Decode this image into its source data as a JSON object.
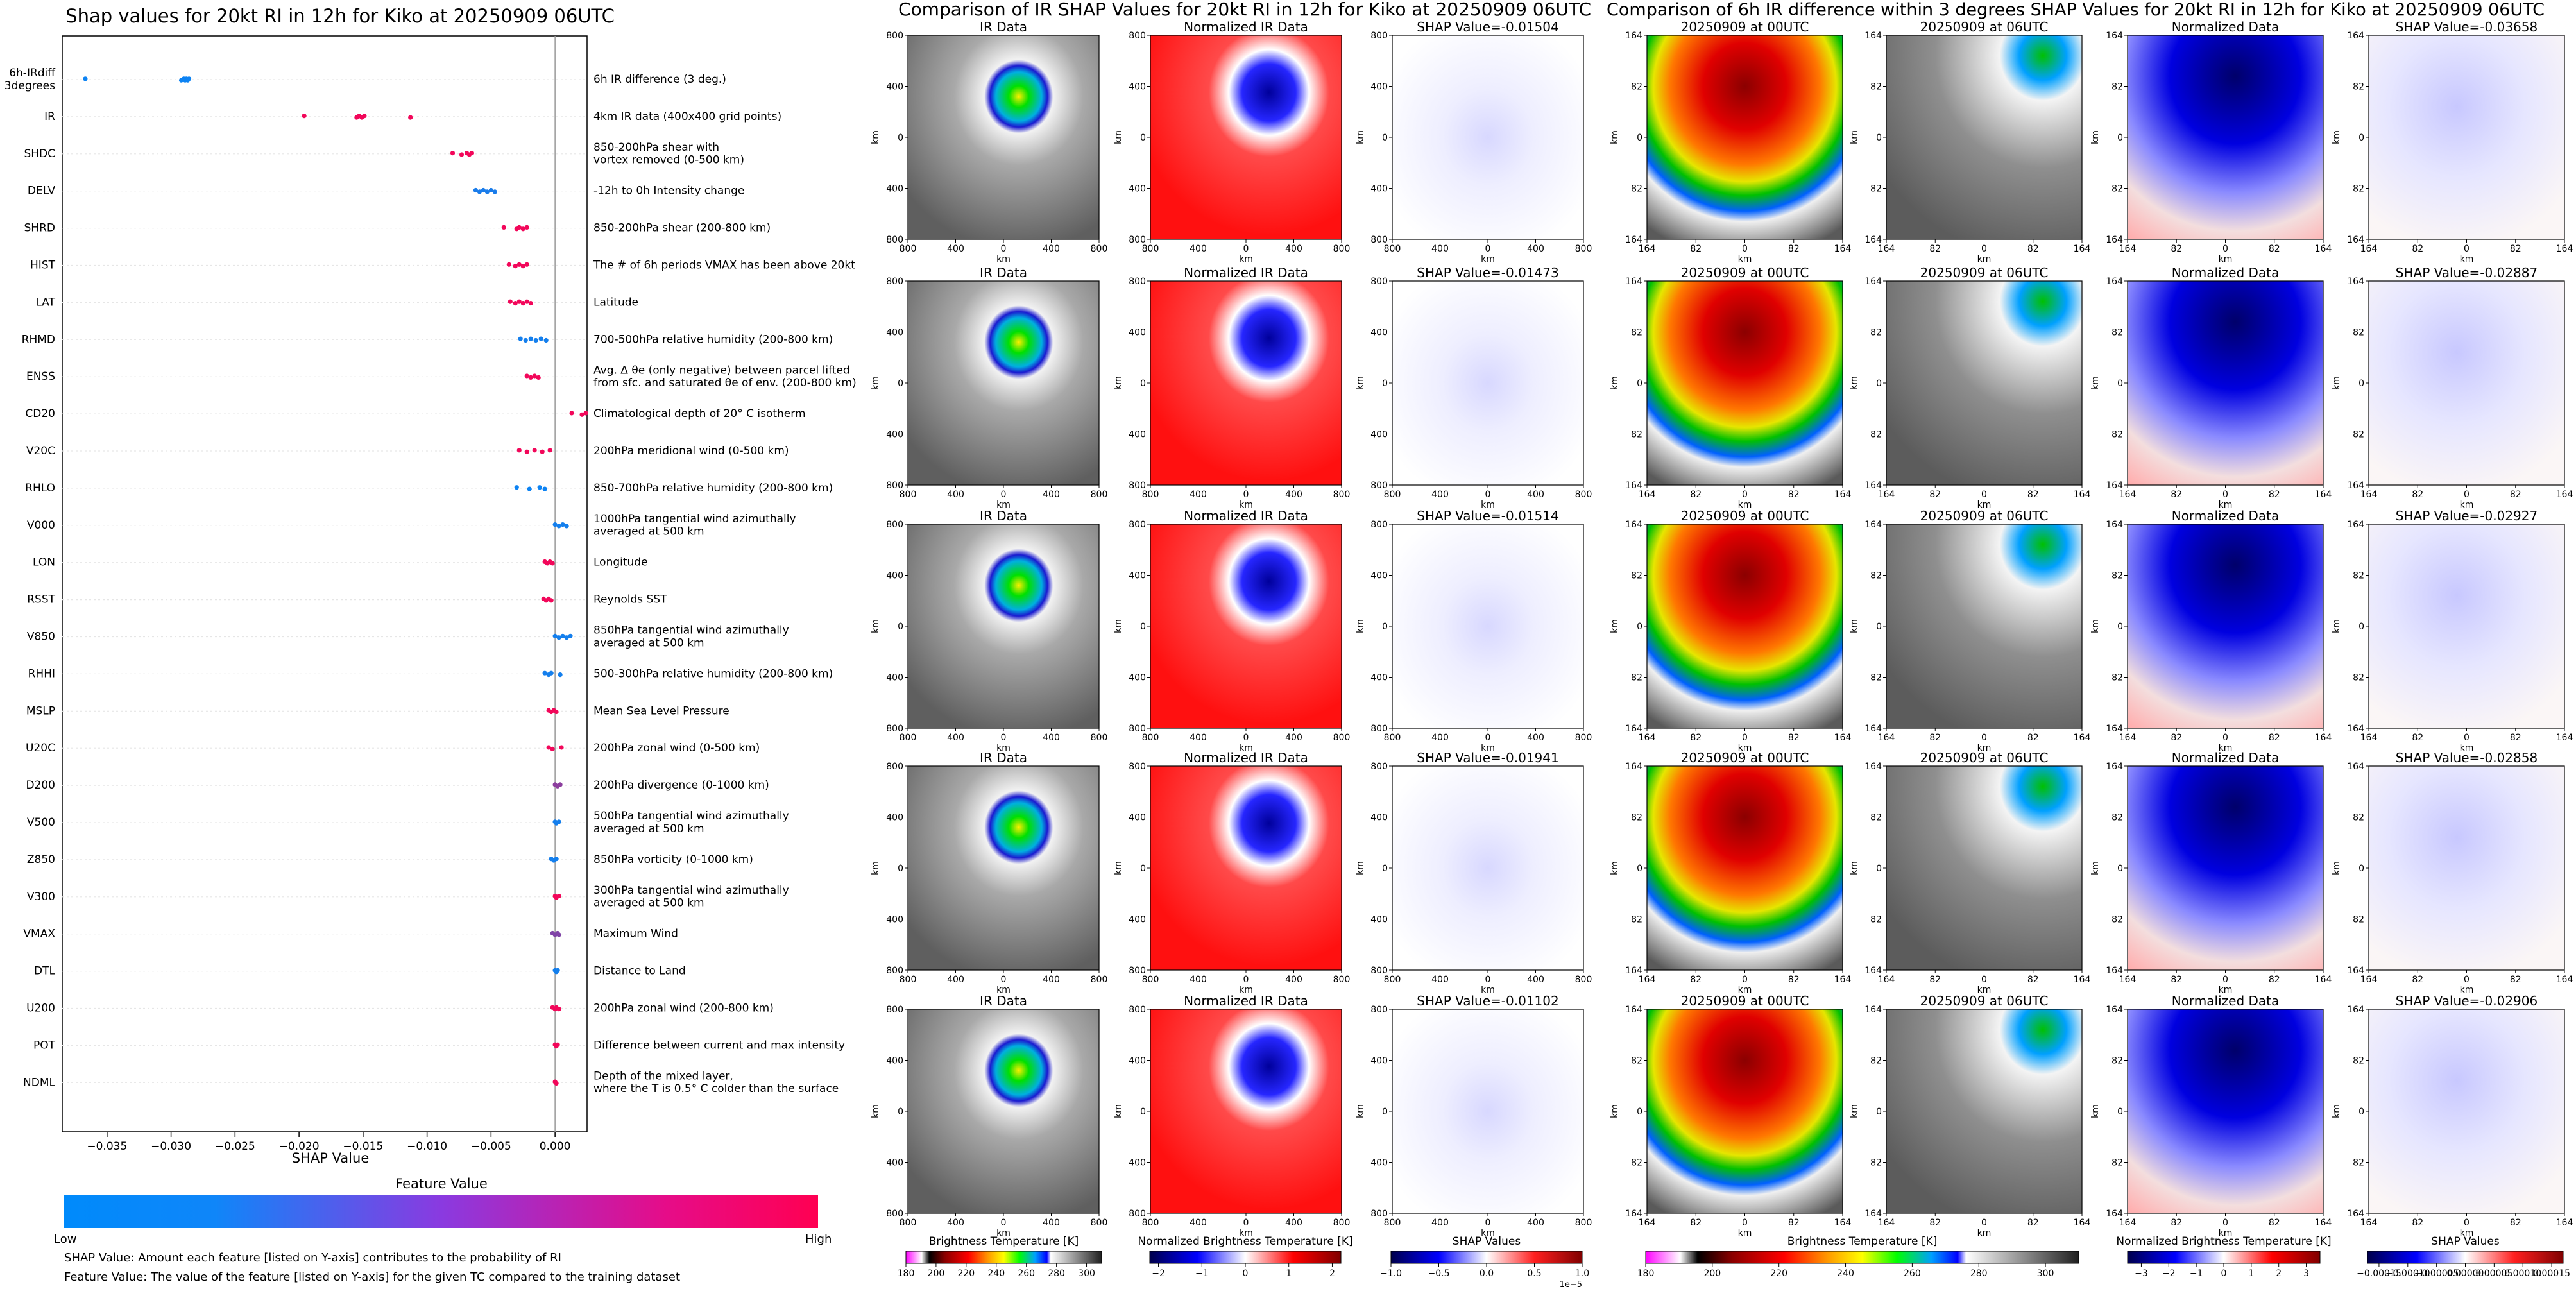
{
  "colors": {
    "low": "#008afb",
    "high": "#ff0052",
    "gridline": "#e6e6e6",
    "zero_line": "#999999"
  },
  "chart_data": [
    {
      "id": "shap-summary",
      "type": "scatter",
      "title": "Shap values for 20kt RI in 12h for Kiko at 20250909 06UTC",
      "xlabel": "SHAP Value",
      "ylabel": "",
      "xlim": [
        -0.0385,
        0.0025
      ],
      "xticks": [
        -0.035,
        -0.03,
        -0.025,
        -0.02,
        -0.015,
        -0.01,
        -0.005,
        0.0
      ],
      "xtick_labels": [
        "−0.035",
        "−0.030",
        "−0.025",
        "−0.020",
        "−0.015",
        "−0.010",
        "−0.005",
        "0.000"
      ],
      "features": [
        {
          "code": "6h-IRdiff\n3degrees",
          "desc": "6h IR difference (3 deg.)",
          "fv": 0.05,
          "points": [
            -0.0367,
            -0.0292,
            -0.029,
            -0.0289,
            -0.0288,
            -0.0287,
            -0.0286
          ]
        },
        {
          "code": "IR",
          "desc": "4km IR data (400x400 grid points)",
          "fv": 0.95,
          "points": [
            -0.0196,
            -0.0155,
            -0.0153,
            -0.0151,
            -0.0149,
            -0.0113
          ]
        },
        {
          "code": "SHDC",
          "desc": "850-200hPa shear with\nvortex removed (0-500 km)",
          "fv": 0.95,
          "points": [
            -0.008,
            -0.0073,
            -0.0069,
            -0.0067,
            -0.0065
          ]
        },
        {
          "code": "DELV",
          "desc": "-12h to 0h Intensity change",
          "fv": 0.1,
          "points": [
            -0.0062,
            -0.0059,
            -0.0056,
            -0.0053,
            -0.005,
            -0.0047
          ]
        },
        {
          "code": "SHRD",
          "desc": "850-200hPa shear (200-800 km)",
          "fv": 0.95,
          "points": [
            -0.004,
            -0.003,
            -0.0028,
            -0.0025,
            -0.0022
          ]
        },
        {
          "code": "HIST",
          "desc": "The # of 6h periods VMAX has been above 20kt",
          "fv": 0.95,
          "points": [
            -0.0036,
            -0.0031,
            -0.0028,
            -0.0025,
            -0.0022
          ]
        },
        {
          "code": "LAT",
          "desc": "Latitude",
          "fv": 0.95,
          "points": [
            -0.0035,
            -0.0031,
            -0.0028,
            -0.0025,
            -0.0022,
            -0.0019
          ]
        },
        {
          "code": "RHMD",
          "desc": "700-500hPa relative humidity (200-800 km)",
          "fv": 0.08,
          "points": [
            -0.0027,
            -0.0023,
            -0.0019,
            -0.0015,
            -0.0011,
            -0.0007
          ]
        },
        {
          "code": "ENSS",
          "desc": "Avg. Δ θe (only negative) between parcel lifted\nfrom sfc. and saturated θe of env. (200-800 km)",
          "fv": 0.95,
          "points": [
            -0.0022,
            -0.0019,
            -0.0016,
            -0.0013
          ]
        },
        {
          "code": "CD20",
          "desc": "Climatological depth of 20° C isotherm",
          "fv": 0.95,
          "points": [
            0.0013,
            0.0021,
            0.0024
          ]
        },
        {
          "code": "V20C",
          "desc": "200hPa meridional wind (0-500 km)",
          "fv": 0.95,
          "points": [
            -0.0028,
            -0.0022,
            -0.0016,
            -0.001,
            -0.0004
          ]
        },
        {
          "code": "RHLO",
          "desc": "850-700hPa relative humidity (200-800 km)",
          "fv": 0.05,
          "points": [
            -0.003,
            -0.002,
            -0.0012,
            -0.0008
          ]
        },
        {
          "code": "V000",
          "desc": "1000hPa tangential wind azimuthally\naveraged at 500 km",
          "fv": 0.08,
          "points": [
            0.0,
            0.0003,
            0.0006,
            0.0009
          ]
        },
        {
          "code": "LON",
          "desc": "Longitude",
          "fv": 0.95,
          "points": [
            -0.0008,
            -0.0006,
            -0.0004,
            -0.0002
          ]
        },
        {
          "code": "RSST",
          "desc": "Reynolds SST",
          "fv": 0.95,
          "points": [
            -0.0009,
            -0.0007,
            -0.0005,
            -0.0003
          ]
        },
        {
          "code": "V850",
          "desc": "850hPa tangential wind azimuthally\naveraged at 500 km",
          "fv": 0.08,
          "points": [
            0.0,
            0.0003,
            0.0006,
            0.0009,
            0.0012
          ]
        },
        {
          "code": "RHHI",
          "desc": "500-300hPa relative humidity (200-800 km)",
          "fv": 0.08,
          "points": [
            -0.0008,
            -0.0005,
            -0.0003,
            0.0004
          ]
        },
        {
          "code": "MSLP",
          "desc": "Mean Sea Level Pressure",
          "fv": 0.95,
          "points": [
            -0.0005,
            -0.0003,
            -0.0001,
            0.0001
          ]
        },
        {
          "code": "U20C",
          "desc": "200hPa zonal wind (0-500 km)",
          "fv": 0.95,
          "points": [
            -0.0005,
            -0.0002,
            0.0005
          ]
        },
        {
          "code": "D200",
          "desc": "200hPa divergence (0-1000 km)",
          "fv": 0.55,
          "points": [
            0.0,
            0.0002,
            0.0004
          ]
        },
        {
          "code": "V500",
          "desc": "500hPa tangential wind azimuthally\naveraged at 500 km",
          "fv": 0.08,
          "points": [
            0.0,
            0.0001,
            0.0003
          ]
        },
        {
          "code": "Z850",
          "desc": "850hPa vorticity (0-1000 km)",
          "fv": 0.08,
          "points": [
            -0.0003,
            -0.0001,
            0.0001
          ]
        },
        {
          "code": "V300",
          "desc": "300hPa tangential wind azimuthally\naveraged at 500 km",
          "fv": 0.95,
          "points": [
            0.0,
            0.0001,
            0.0003
          ]
        },
        {
          "code": "VMAX",
          "desc": "Maximum Wind",
          "fv": 0.5,
          "points": [
            -0.0002,
            0.0,
            0.0002,
            0.0003
          ]
        },
        {
          "code": "DTL",
          "desc": "Distance to Land",
          "fv": 0.08,
          "points": [
            0.0,
            0.0001,
            0.0002
          ]
        },
        {
          "code": "U200",
          "desc": "200hPa zonal wind (200-800 km)",
          "fv": 0.95,
          "points": [
            -0.0002,
            0.0,
            0.0001,
            0.0003
          ]
        },
        {
          "code": "POT",
          "desc": "Difference between current and max intensity",
          "fv": 0.95,
          "points": [
            0.0,
            0.0001,
            0.0002
          ]
        },
        {
          "code": "NDML",
          "desc": "Depth of the mixed layer,\nwhere the T is 0.5° C colder than the surface",
          "fv": 0.95,
          "points": [
            0.0,
            0.0001
          ]
        }
      ],
      "colorbar": {
        "label": "Feature Value",
        "low_label": "Low",
        "high_label": "High"
      },
      "notes": [
        "SHAP Value: Amount each feature [listed on Y-axis] contributes to the probability of RI",
        "Feature Value: The value of the feature [listed on Y-axis] for the given TC compared to the training dataset"
      ]
    },
    {
      "id": "ir-shap-comparison",
      "type": "heatmap",
      "title": "Comparison of IR SHAP Values for 20kt RI in 12h for Kiko at 20250909 06UTC",
      "xlabel": "km",
      "ylabel": "km",
      "xtick_labels": [
        "800",
        "400",
        "0",
        "400",
        "800"
      ],
      "ytick_labels": [
        "800",
        "400",
        "0",
        "400",
        "800"
      ],
      "column_titles": [
        "IR Data",
        "Normalized IR Data"
      ],
      "shap_titles": [
        "SHAP Value=-0.01504",
        "SHAP Value=-0.01473",
        "SHAP Value=-0.01514",
        "SHAP Value=-0.01941",
        "SHAP Value=-0.01102"
      ],
      "shap_values": [
        -0.01504,
        -0.01473,
        -0.01514,
        -0.01941,
        -0.01102
      ],
      "colorbars": [
        {
          "label": "Brightness Temperature [K]",
          "ticks": [
            "180",
            "200",
            "220",
            "240",
            "260",
            "280",
            "300"
          ],
          "range": [
            180,
            310
          ]
        },
        {
          "label": "Normalized Brightness Temperature [K]",
          "ticks": [
            "−2",
            "−1",
            "0",
            "1",
            "2"
          ],
          "range": [
            -2.2,
            2.2
          ]
        },
        {
          "label": "SHAP Values",
          "ticks": [
            "−1.0",
            "−0.5",
            "0.0",
            "0.5",
            "1.0"
          ],
          "range": [
            -1.0,
            1.0
          ],
          "offset": "1e−5"
        }
      ]
    },
    {
      "id": "irdiff-shap-comparison",
      "type": "heatmap",
      "title": "Comparison of 6h IR difference within 3 degrees SHAP Values for 20kt RI in 12h for Kiko at 20250909 06UTC",
      "xlabel": "km",
      "ylabel": "km",
      "xtick_labels": [
        "164",
        "82",
        "0",
        "82",
        "164"
      ],
      "ytick_labels": [
        "164",
        "82",
        "0",
        "82",
        "164"
      ],
      "column_titles": [
        "20250909 at 00UTC",
        "20250909 at 06UTC",
        "Normalized Data"
      ],
      "shap_titles": [
        "SHAP Value=-0.03658",
        "SHAP Value=-0.02887",
        "SHAP Value=-0.02927",
        "SHAP Value=-0.02858",
        "SHAP Value=-0.02906"
      ],
      "shap_values": [
        -0.03658,
        -0.02887,
        -0.02927,
        -0.02858,
        -0.02906
      ],
      "colorbars": [
        {
          "label": "Brightness Temperature [K]",
          "ticks": [
            "180",
            "200",
            "220",
            "240",
            "260",
            "280",
            "300"
          ],
          "range": [
            180,
            310
          ]
        },
        {
          "label": "Normalized Brightness Temperature [K]",
          "ticks": [
            "−3",
            "−2",
            "−1",
            "0",
            "1",
            "2",
            "3"
          ],
          "range": [
            -3.5,
            3.5
          ]
        },
        {
          "label": "SHAP Values",
          "ticks": [
            "−0.00015",
            "−0.00010",
            "−0.00005",
            "0.00000",
            "0.00005",
            "0.00010",
            "0.00015"
          ],
          "range": [
            -0.00017,
            0.00017
          ]
        }
      ]
    }
  ]
}
